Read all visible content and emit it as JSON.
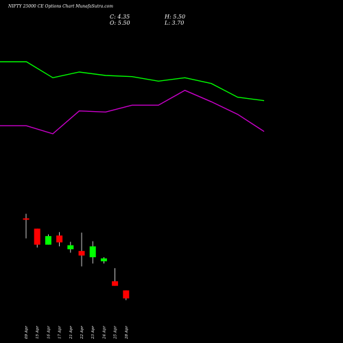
{
  "header": {
    "title": "NIFTY 25000  CE Options  Chart MunafaSutra.com",
    "close": "C: 4.35",
    "high": "H: 5.50",
    "open": "O: 5.50",
    "low": "L: 3.70"
  },
  "colors": {
    "background": "#000000",
    "upper_line": "#00ff00",
    "lower_line": "#cc00cc",
    "bullish": "#00ff00",
    "bearish": "#ff0000",
    "wick": "#ffffff",
    "doji": "#ff0000"
  },
  "chart_data": {
    "type": "candlestick",
    "categories": [
      "09 Apr",
      "15 Apr",
      "16 Apr",
      "17 Apr",
      "21 Apr",
      "22 Apr",
      "23 Apr",
      "24 Apr",
      "25 Apr",
      "28 Apr"
    ],
    "candles": [
      {
        "open": 49.0,
        "high": 53.0,
        "low": 31.5,
        "close": 48.0,
        "dir": "down"
      },
      {
        "open": 40.0,
        "high": 40.0,
        "low": 23.5,
        "close": 26.0,
        "dir": "down"
      },
      {
        "open": 26.0,
        "high": 35.0,
        "low": 26.0,
        "close": 33.5,
        "dir": "up"
      },
      {
        "open": 34.0,
        "high": 37.0,
        "low": 24.5,
        "close": 28.0,
        "dir": "down"
      },
      {
        "open": 22.0,
        "high": 28.5,
        "low": 19.0,
        "close": 25.5,
        "dir": "up"
      },
      {
        "open": 20.5,
        "high": 36.5,
        "low": 7.0,
        "close": 16.5,
        "dir": "down"
      },
      {
        "open": 15.0,
        "high": 29.0,
        "low": 9.5,
        "close": 24.5,
        "dir": "up"
      },
      {
        "open": 11.5,
        "high": 15.0,
        "low": 9.5,
        "close": 14.0,
        "dir": "up"
      },
      {
        "open": -6.0,
        "high": 5.5,
        "low": -10.0,
        "close": -10.0,
        "dir": "down"
      },
      {
        "open": -14.0,
        "high": -14.0,
        "low": -22.5,
        "close": -21.0,
        "dir": "down"
      }
    ],
    "upper_line": [
      186,
      186,
      172,
      177,
      174,
      173,
      169,
      172,
      167,
      155,
      152
    ],
    "lower_line": [
      130,
      130,
      123,
      143,
      142,
      148,
      148,
      161,
      151,
      140,
      125
    ],
    "ylim": [
      -60,
      240
    ]
  }
}
